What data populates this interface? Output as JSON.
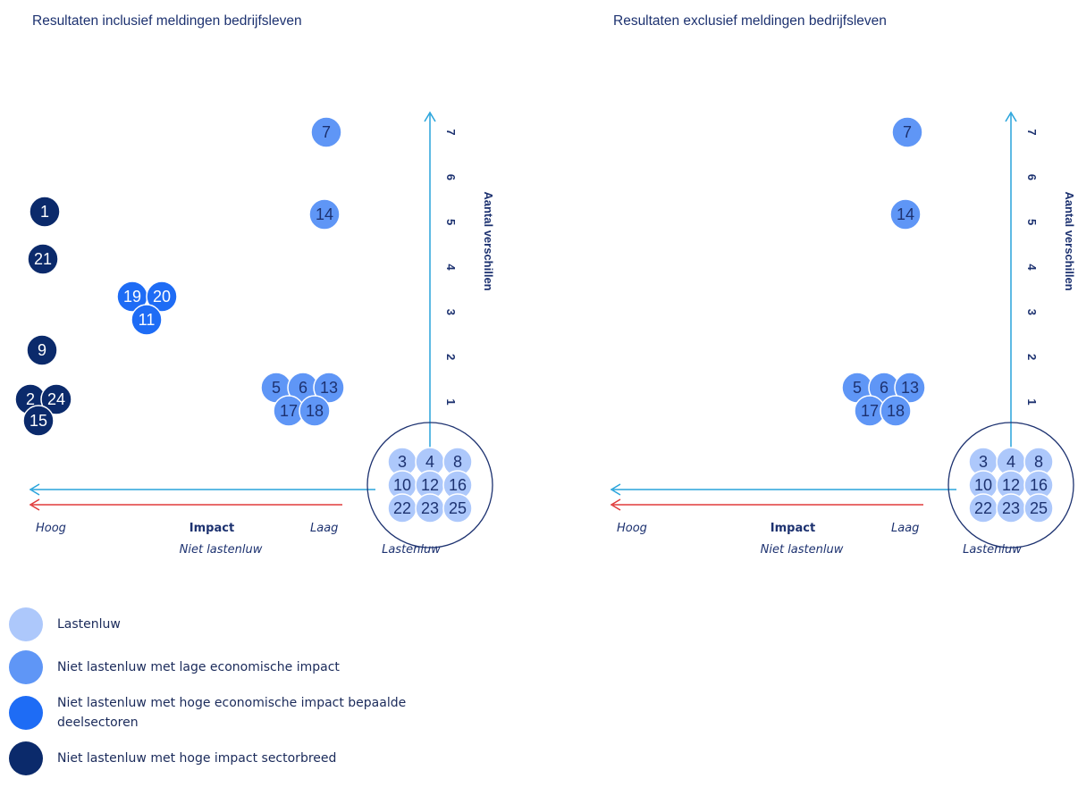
{
  "colors": {
    "lastenluw": "#adc8fb",
    "laag": "#5f96f6",
    "hoog_deel": "#1e6cf5",
    "hoog_breed": "#0b2a6b",
    "axis": "#29a4dc",
    "red_arrow": "#e03a3a",
    "circle_outline": "#1d3270",
    "text_dark": "#1d3270"
  },
  "chart_data": [
    {
      "type": "scatter",
      "title": "Resultaten inclusief meldingen bedrijfsleven",
      "xlabel": "Impact",
      "x_low_label": "Laag",
      "x_high_label": "Hoog",
      "x_sublabel": "Niet lastenluw",
      "lastenluw_label": "Lastenluw",
      "ylabel": "Aantal verschillen",
      "yticks": [
        "1",
        "2",
        "3",
        "4",
        "5",
        "6",
        "7"
      ],
      "ylim": [
        0,
        7
      ],
      "points": [
        {
          "id": "7",
          "category": "laag"
        },
        {
          "id": "14",
          "category": "laag"
        },
        {
          "id": "1",
          "category": "hoog_breed"
        },
        {
          "id": "21",
          "category": "hoog_breed"
        },
        {
          "id": "19",
          "category": "hoog_deel"
        },
        {
          "id": "20",
          "category": "hoog_deel"
        },
        {
          "id": "11",
          "category": "hoog_deel"
        },
        {
          "id": "9",
          "category": "hoog_breed"
        },
        {
          "id": "2",
          "category": "hoog_breed"
        },
        {
          "id": "24",
          "category": "hoog_breed"
        },
        {
          "id": "15",
          "category": "hoog_breed"
        },
        {
          "id": "5",
          "category": "laag"
        },
        {
          "id": "6",
          "category": "laag"
        },
        {
          "id": "13",
          "category": "laag"
        },
        {
          "id": "17",
          "category": "laag"
        },
        {
          "id": "18",
          "category": "laag"
        }
      ],
      "cluster": [
        "3",
        "4",
        "8",
        "10",
        "12",
        "16",
        "22",
        "23",
        "25"
      ]
    },
    {
      "type": "scatter",
      "title": "Resultaten exclusief meldingen bedrijfsleven",
      "xlabel": "Impact",
      "x_low_label": "Laag",
      "x_high_label": "Hoog",
      "x_sublabel": "Niet lastenluw",
      "lastenluw_label": "Lastenluw",
      "ylabel": "Aantal verschillen",
      "yticks": [
        "1",
        "2",
        "3",
        "4",
        "5",
        "6",
        "7"
      ],
      "ylim": [
        0,
        7
      ],
      "points": [
        {
          "id": "7",
          "category": "laag"
        },
        {
          "id": "14",
          "category": "laag"
        },
        {
          "id": "5",
          "category": "laag"
        },
        {
          "id": "6",
          "category": "laag"
        },
        {
          "id": "13",
          "category": "laag"
        },
        {
          "id": "17",
          "category": "laag"
        },
        {
          "id": "18",
          "category": "laag"
        }
      ],
      "cluster": [
        "3",
        "4",
        "8",
        "10",
        "12",
        "16",
        "22",
        "23",
        "25"
      ]
    }
  ],
  "legend": [
    {
      "label": "Lastenluw",
      "category": "lastenluw"
    },
    {
      "label": "Niet lastenluw met lage economische impact",
      "category": "laag"
    },
    {
      "label": "Niet lastenluw met hoge economische impact bepaalde deelsectoren",
      "category": "hoog_deel"
    },
    {
      "label": "Niet lastenluw met hoge impact sectorbreed",
      "category": "hoog_breed"
    }
  ]
}
